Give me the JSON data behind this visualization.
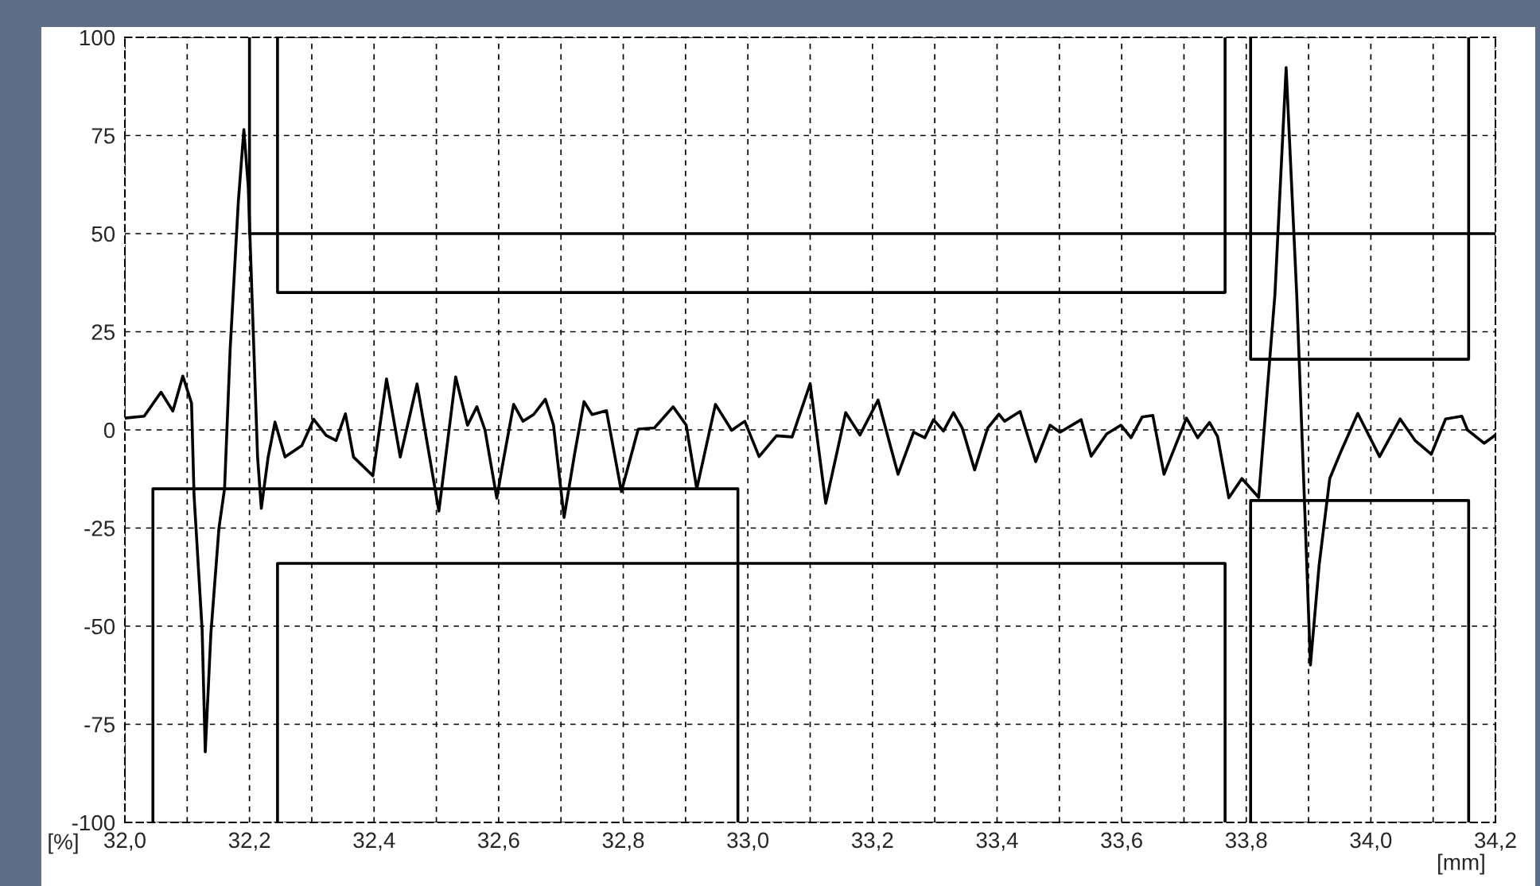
{
  "chart_data": {
    "type": "line",
    "xlabel": "[mm]",
    "ylabel": "[%]",
    "xlim": [
      32.0,
      34.2
    ],
    "ylim": [
      -100,
      100
    ],
    "xticks": [
      {
        "value": 32.0,
        "label": "32,0"
      },
      {
        "value": 32.1,
        "label": null
      },
      {
        "value": 32.2,
        "label": "32,2"
      },
      {
        "value": 32.3,
        "label": null
      },
      {
        "value": 32.4,
        "label": "32,4"
      },
      {
        "value": 32.5,
        "label": null
      },
      {
        "value": 32.6,
        "label": "32,6"
      },
      {
        "value": 32.7,
        "label": null
      },
      {
        "value": 32.8,
        "label": "32,8"
      },
      {
        "value": 32.9,
        "label": null
      },
      {
        "value": 33.0,
        "label": "33,0"
      },
      {
        "value": 33.1,
        "label": null
      },
      {
        "value": 33.2,
        "label": "33,2"
      },
      {
        "value": 33.3,
        "label": null
      },
      {
        "value": 33.4,
        "label": "33,4"
      },
      {
        "value": 33.5,
        "label": null
      },
      {
        "value": 33.6,
        "label": "33,6"
      },
      {
        "value": 33.7,
        "label": null
      },
      {
        "value": 33.8,
        "label": "33,8"
      },
      {
        "value": 33.9,
        "label": null
      },
      {
        "value": 34.0,
        "label": "34,0"
      },
      {
        "value": 34.1,
        "label": null
      },
      {
        "value": 34.2,
        "label": "34,2"
      }
    ],
    "yticks": [
      -100,
      -75,
      -50,
      -25,
      0,
      25,
      50,
      75,
      100
    ],
    "grid": true,
    "line_style": "solid",
    "marker": "none",
    "series": [
      {
        "color": "#000000",
        "x": [
          32.0,
          32.031,
          32.058,
          32.077,
          32.093,
          32.107,
          32.111,
          32.124,
          32.129,
          32.138,
          32.151,
          32.16,
          32.169,
          32.182,
          32.191,
          32.198,
          32.207,
          32.213,
          32.219,
          32.23,
          32.241,
          32.257,
          32.284,
          32.303,
          32.323,
          32.339,
          32.354,
          32.367,
          32.398,
          32.42,
          32.442,
          32.469,
          32.504,
          32.531,
          32.55,
          32.565,
          32.578,
          32.597,
          32.605,
          32.624,
          32.639,
          32.656,
          32.675,
          32.688,
          32.705,
          32.722,
          32.737,
          32.75,
          32.773,
          32.797,
          32.824,
          32.85,
          32.88,
          32.901,
          32.918,
          32.948,
          32.974,
          32.995,
          33.018,
          33.046,
          33.071,
          33.1,
          33.125,
          33.157,
          33.18,
          33.209,
          33.241,
          33.266,
          33.284,
          33.298,
          33.314,
          33.33,
          33.344,
          33.364,
          33.385,
          33.403,
          33.412,
          33.437,
          33.462,
          33.485,
          33.501,
          33.535,
          33.551,
          33.576,
          33.599,
          33.615,
          33.633,
          33.65,
          33.668,
          33.704,
          33.722,
          33.741,
          33.754,
          33.772,
          33.793,
          33.82,
          33.846,
          33.864,
          33.881,
          33.894,
          33.903,
          33.917,
          33.934,
          33.952,
          33.979,
          34.014,
          34.047,
          34.071,
          34.097,
          34.12,
          34.146,
          34.155,
          34.182,
          34.2
        ],
        "values": [
          3,
          3.5,
          9.6,
          4.8,
          13.7,
          6.8,
          -16.6,
          -51,
          -82,
          -52,
          -25,
          -15,
          20.6,
          57.9,
          76.5,
          62,
          20.6,
          -6.9,
          -20,
          -6.9,
          2,
          -6.9,
          -4,
          2.7,
          -1.4,
          -2.7,
          4.1,
          -6.9,
          -11.7,
          13,
          -6.9,
          11.7,
          -20.7,
          13.5,
          1.2,
          5.9,
          0,
          -17.4,
          -10,
          6.5,
          2.2,
          3.9,
          7.8,
          1.2,
          -22.3,
          -6,
          7.2,
          3.9,
          4.9,
          -15.7,
          0.2,
          0.5,
          5.9,
          1.2,
          -15,
          6.5,
          -0.1,
          2.2,
          -6.8,
          -1.5,
          -1.8,
          11.8,
          -18.7,
          4.4,
          -1.3,
          7.6,
          -11.3,
          -0.6,
          -2,
          2.6,
          -0.3,
          4.4,
          0.5,
          -10.2,
          0.5,
          4,
          2.2,
          4.7,
          -8.1,
          1.2,
          -0.6,
          2.6,
          -6.7,
          -1,
          1.2,
          -2,
          3.3,
          3.7,
          -11.3,
          3,
          -2,
          1.9,
          -1.7,
          -17.3,
          -12.4,
          -17.2,
          34.5,
          92.3,
          34.5,
          -20.6,
          -59.9,
          -34.4,
          -12.4,
          -5.5,
          4.2,
          -6.8,
          2.8,
          -2.7,
          -6.2,
          2.8,
          3.5,
          0,
          -3.4,
          -1.3
        ]
      },
      {
        "color": "#000000",
        "x": [
          32.2,
          32.2,
          34.2
        ],
        "values": [
          100,
          50,
          50
        ]
      },
      {
        "color": "#000000",
        "x": [
          32.245,
          32.245,
          33.766,
          33.766
        ],
        "values": [
          100,
          35,
          35,
          100
        ]
      },
      {
        "color": "#000000",
        "x": [
          33.807,
          33.807,
          34.157,
          34.157
        ],
        "values": [
          100,
          18,
          18,
          100
        ]
      },
      {
        "color": "#000000",
        "x": [
          32.045,
          32.045,
          32.984,
          32.984
        ],
        "values": [
          -100,
          -15,
          -15,
          -100
        ]
      },
      {
        "color": "#000000",
        "x": [
          32.245,
          32.245,
          33.766,
          33.766
        ],
        "values": [
          -100,
          -34,
          -34,
          -100
        ]
      },
      {
        "color": "#000000",
        "x": [
          33.807,
          33.807,
          34.157,
          34.157
        ],
        "values": [
          -100,
          -18,
          -18,
          -100
        ]
      }
    ]
  }
}
